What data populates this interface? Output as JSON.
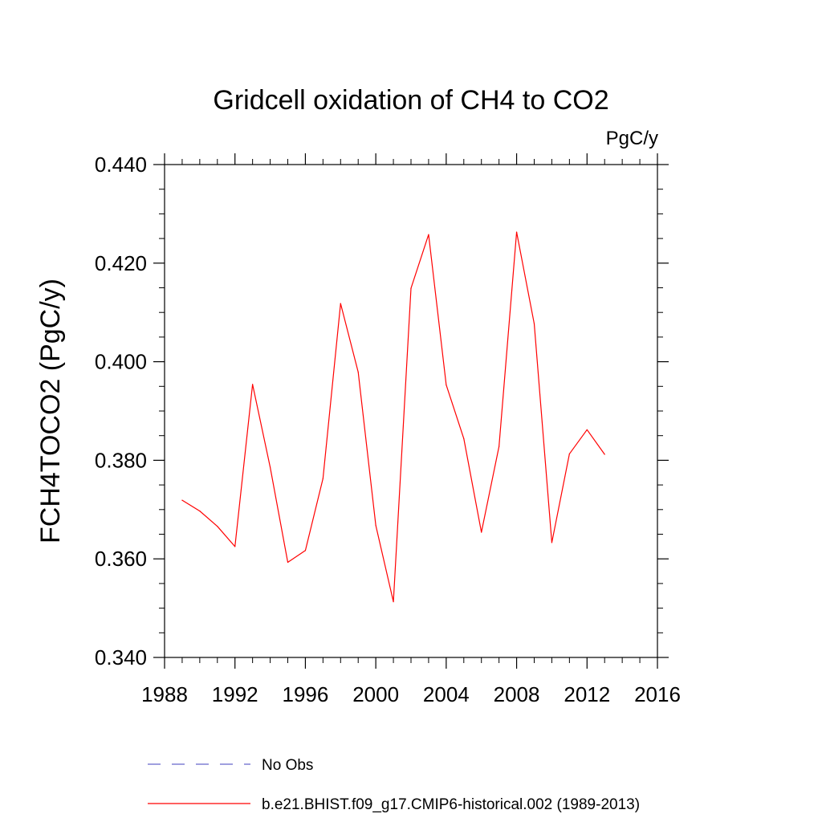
{
  "chart_data": {
    "type": "line",
    "title": "Gridcell oxidation of CH4 to CO2",
    "units": "PgC/y",
    "ylabel": "FCH4TOCO2  (PgC/y)",
    "xlabel": "",
    "xlim": [
      1988,
      2016
    ],
    "ylim": [
      0.34,
      0.44
    ],
    "x_ticks": [
      1988,
      1992,
      1996,
      2000,
      2004,
      2008,
      2012,
      2016
    ],
    "x_tick_labels": [
      "1988",
      "1992",
      "1996",
      "2000",
      "2004",
      "2008",
      "2012",
      "2016"
    ],
    "y_ticks": [
      0.34,
      0.36,
      0.38,
      0.4,
      0.42,
      0.44
    ],
    "y_tick_labels": [
      "0.340",
      "0.360",
      "0.380",
      "0.400",
      "0.420",
      "0.440"
    ],
    "grid": false,
    "legend_position": "bottom",
    "series": [
      {
        "name": "No Obs",
        "color": "#6666cc",
        "dashed": true,
        "x": [],
        "values": []
      },
      {
        "name": "b.e21.BHIST.f09_g17.CMIP6-historical.002 (1989-2013)",
        "color": "#ff0000",
        "dashed": false,
        "x": [
          1989,
          1990,
          1991,
          1992,
          1993,
          1994,
          1995,
          1996,
          1997,
          1998,
          1999,
          2000,
          2001,
          2002,
          2003,
          2004,
          2005,
          2006,
          2007,
          2008,
          2009,
          2010,
          2011,
          2012,
          2013
        ],
        "values": [
          0.3719,
          0.3697,
          0.3666,
          0.3625,
          0.3954,
          0.3786,
          0.3593,
          0.3617,
          0.3763,
          0.4118,
          0.3979,
          0.3668,
          0.3513,
          0.4149,
          0.4258,
          0.3953,
          0.3844,
          0.3654,
          0.3828,
          0.4263,
          0.4077,
          0.3633,
          0.3813,
          0.3862,
          0.3812
        ]
      }
    ]
  }
}
